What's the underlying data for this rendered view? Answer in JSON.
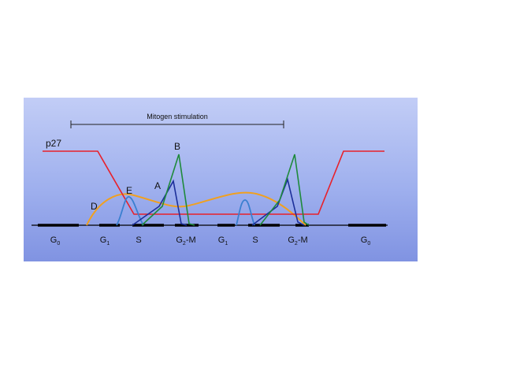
{
  "annotation": {
    "mitogen_label": "Mitogen stimulation"
  },
  "curve_labels": {
    "p27": "p27",
    "A": "A",
    "B": "B",
    "D": "D",
    "E": "E"
  },
  "phases": [
    {
      "main": "G",
      "sub": "0"
    },
    {
      "main": "G",
      "sub": "1"
    },
    {
      "main": "S",
      "sub": ""
    },
    {
      "main": "G",
      "sub": "2",
      "tail": "-M"
    },
    {
      "main": "G",
      "sub": "1"
    },
    {
      "main": "S",
      "sub": ""
    },
    {
      "main": "G",
      "sub": "2",
      "tail": "-M"
    },
    {
      "main": "G",
      "sub": "0"
    }
  ],
  "colors": {
    "p27": "#e8202a",
    "A": "#1c2f9a",
    "B": "#1f8a3c",
    "D": "#f0a020",
    "E": "#3a7fd0",
    "axis": "#000000"
  }
}
